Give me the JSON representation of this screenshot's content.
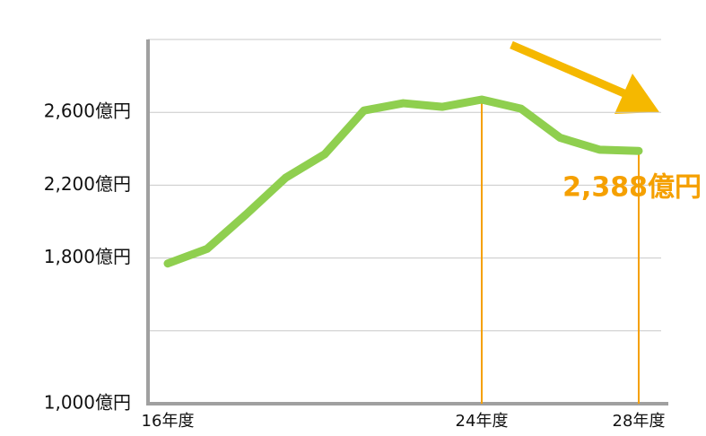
{
  "chart_data": {
    "type": "line",
    "categories": [
      "16年度",
      null,
      null,
      null,
      null,
      null,
      null,
      null,
      "24年度",
      null,
      null,
      null,
      "28年度"
    ],
    "series": [
      {
        "color": "#8fcf4f",
        "values": [
          1770,
          1850,
          2040,
          2240,
          2370,
          2610,
          2650,
          2630,
          2670,
          2620,
          2460,
          2395,
          2388
        ]
      }
    ],
    "value_labels": [
      null,
      null,
      null,
      null,
      null,
      null,
      null,
      null,
      null,
      null,
      null,
      null,
      "2,388億円"
    ],
    "highlight_color": "#f5a000",
    "ylim": [
      1000,
      3000
    ],
    "yticks": [
      {
        "value": 1000,
        "label": "1,000億円"
      },
      {
        "value": 1400,
        "label": null
      },
      {
        "value": 1800,
        "label": "1,800億円"
      },
      {
        "value": 2200,
        "label": "2,200億円"
      },
      {
        "value": 2600,
        "label": "2,600億円"
      },
      {
        "value": 3000,
        "label": null
      }
    ],
    "grid": true
  }
}
